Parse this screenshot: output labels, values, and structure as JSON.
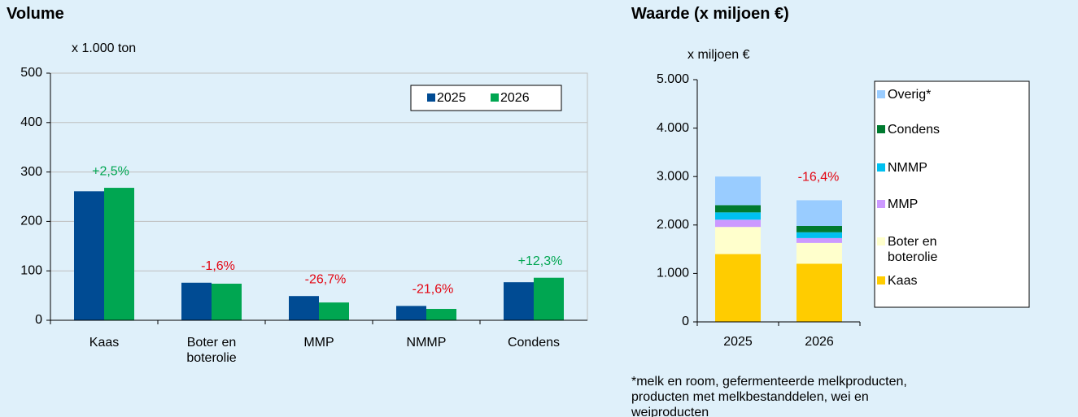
{
  "chart_data": [
    {
      "type": "bar",
      "title": "Volume",
      "y_label": "x 1.000 ton",
      "categories": [
        "Kaas",
        "Boter en boterolie",
        "MMP",
        "NMMP",
        "Condens"
      ],
      "series": [
        {
          "name": "2025",
          "color": "#004b93",
          "values": [
            261,
            76,
            49,
            29,
            77
          ]
        },
        {
          "name": "2026",
          "color": "#00a651",
          "values": [
            268,
            74,
            36,
            23,
            86
          ]
        }
      ],
      "annotations": [
        {
          "text": "+2,5%",
          "color": "#00a651"
        },
        {
          "text": "-1,6%",
          "color": "#e30613"
        },
        {
          "text": "-26,7%",
          "color": "#e30613"
        },
        {
          "text": "-21,6%",
          "color": "#e30613"
        },
        {
          "text": "+12,3%",
          "color": "#00a651"
        }
      ],
      "ylim": [
        0,
        500
      ],
      "yticks": [
        0,
        100,
        200,
        300,
        400,
        500
      ],
      "grid": true,
      "legend": "top-right"
    },
    {
      "type": "stacked-bar",
      "title": "Waarde (x miljoen €)",
      "y_label": "x miljoen €",
      "categories": [
        "2025",
        "2026"
      ],
      "series": [
        {
          "name": "Kaas",
          "color": "#ffcc00",
          "values": [
            1400,
            1200
          ]
        },
        {
          "name": "Boter en boterolie",
          "color": "#ffffcc",
          "values": [
            560,
            430
          ]
        },
        {
          "name": "MMP",
          "color": "#cc99ff",
          "values": [
            150,
            100
          ]
        },
        {
          "name": "NMMP",
          "color": "#00c0f0",
          "values": [
            150,
            120
          ]
        },
        {
          "name": "Condens",
          "color": "#007a2f",
          "values": [
            150,
            130
          ]
        },
        {
          "name": "Overig*",
          "color": "#99ccff",
          "values": [
            590,
            530
          ]
        }
      ],
      "annotations": [
        null,
        {
          "text": "-16,4%",
          "color": "#e30613"
        }
      ],
      "ylim": [
        0,
        5000
      ],
      "yticks": [
        0,
        {
          "value": 1000,
          "label": "1.000"
        },
        {
          "value": 2000,
          "label": "2.000"
        },
        {
          "value": 3000,
          "label": "3.000"
        },
        {
          "value": 4000,
          "label": "4.000"
        },
        {
          "value": 5000,
          "label": "5.000"
        }
      ],
      "grid": false,
      "legend": "right",
      "note": "*melk en room, gefermenteerde melkproducten, producten met melkbestanddelen, wei en weiproducten"
    }
  ]
}
